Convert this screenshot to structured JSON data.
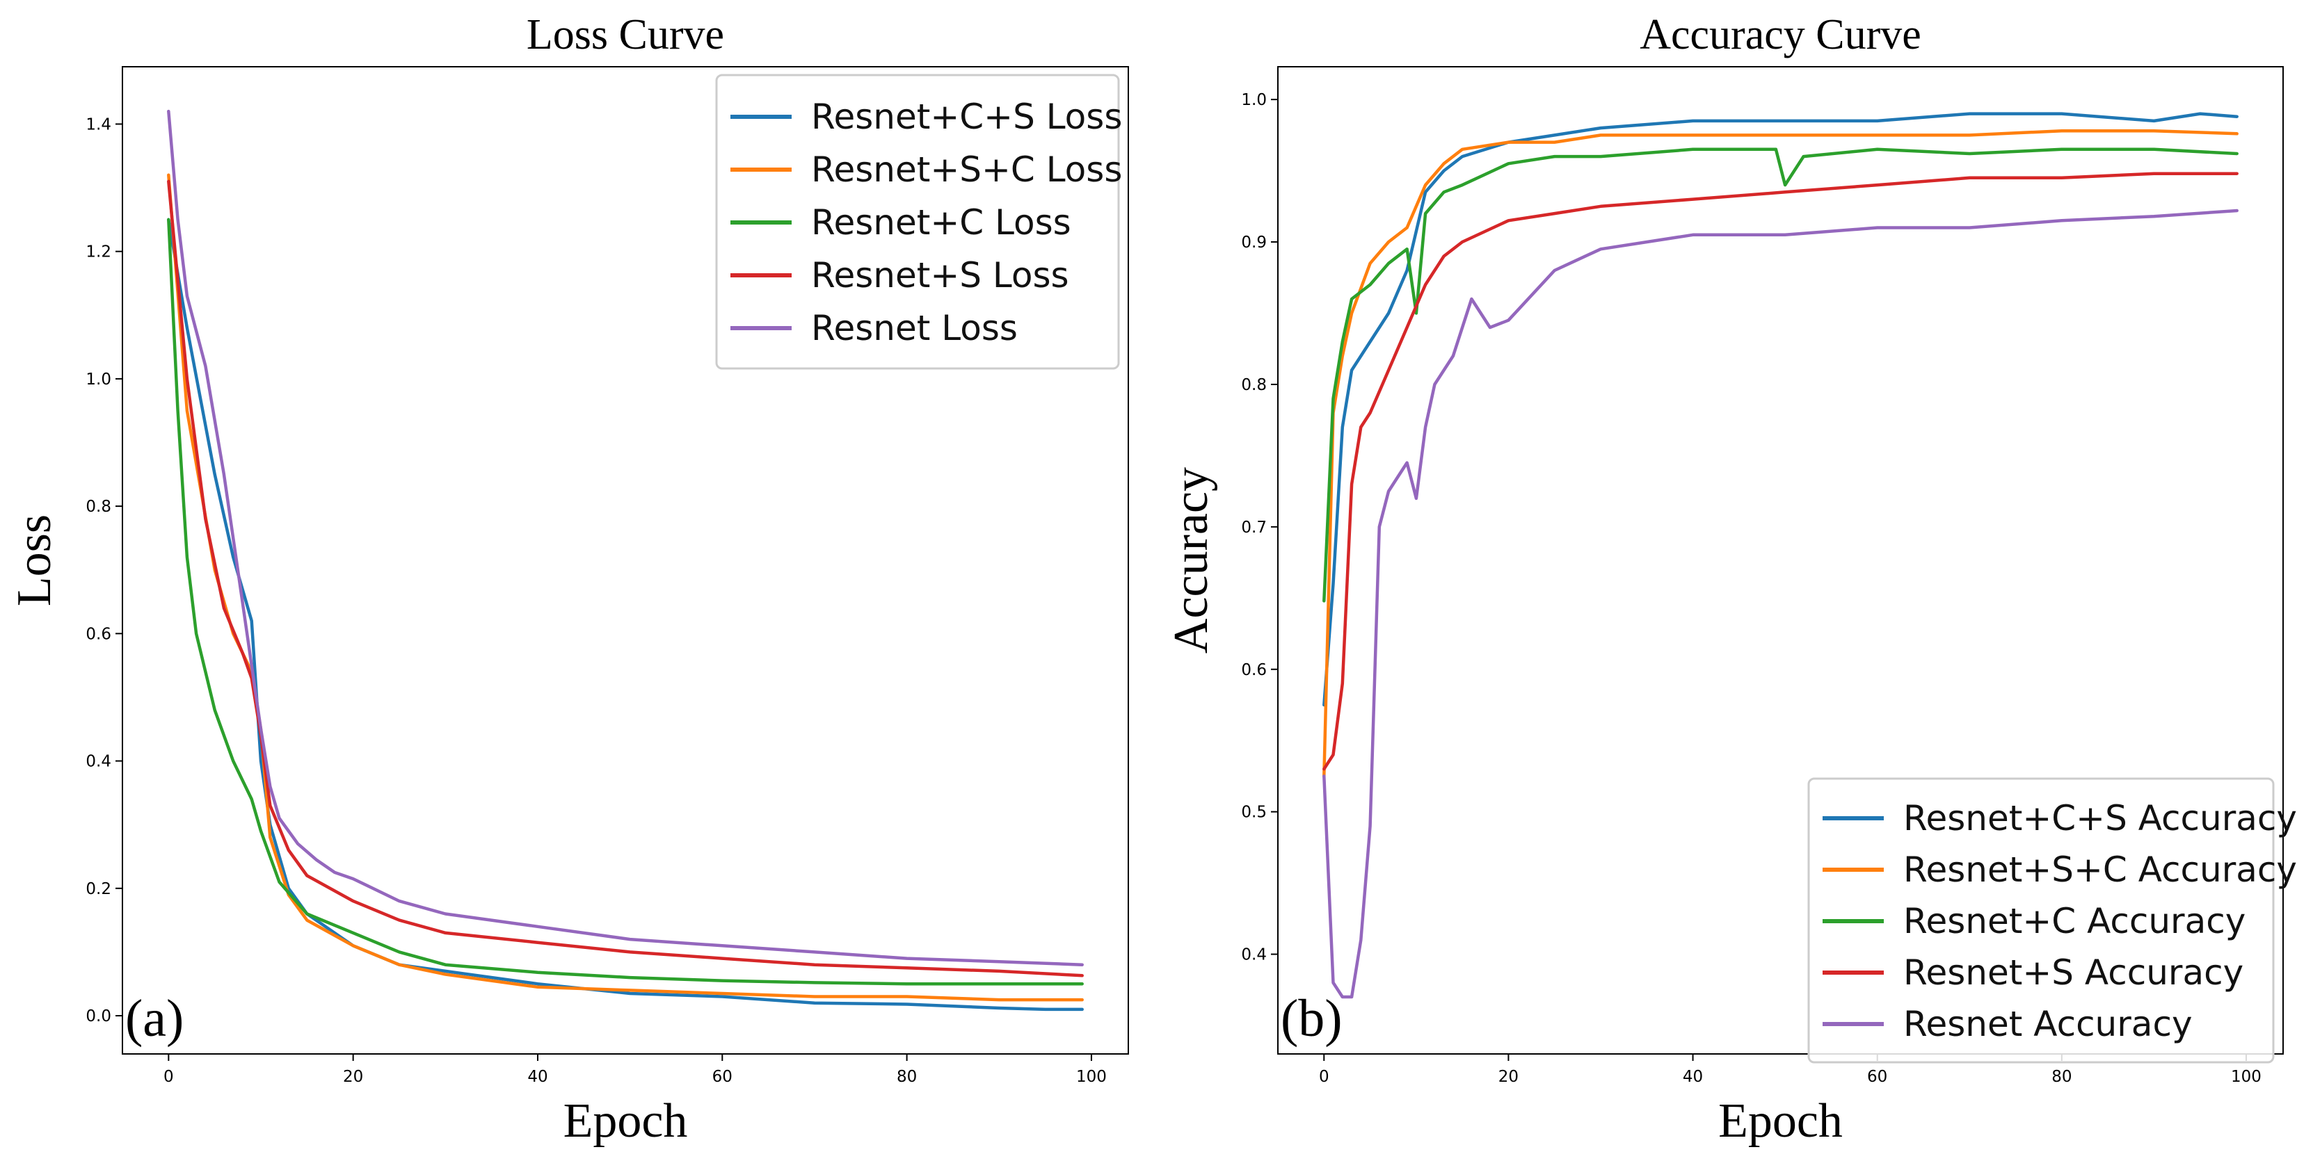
{
  "chart_data": [
    {
      "type": "line",
      "panel": "(a)",
      "title": "Loss Curve",
      "xlabel": "Epoch",
      "ylabel": "Loss",
      "xlim": [
        -5,
        104
      ],
      "ylim": [
        -0.06,
        1.49
      ],
      "xticks": [
        0,
        20,
        40,
        60,
        80,
        100
      ],
      "xtick_labels": [
        "0",
        "20",
        "40",
        "60",
        "80",
        "100"
      ],
      "yticks": [
        0.0,
        0.2,
        0.4,
        0.6,
        0.8,
        1.0,
        1.2,
        1.4
      ],
      "ytick_labels": [
        "0.0",
        "0.2",
        "0.4",
        "0.6",
        "0.8",
        "1.0",
        "1.2",
        "1.4"
      ],
      "grid": false,
      "legend_position": "top-right",
      "series": [
        {
          "name": "Resnet+C+S Loss",
          "color": "#1f77b4",
          "x": [
            0,
            2,
            5,
            7,
            9,
            10,
            11,
            13,
            15,
            20,
            25,
            30,
            40,
            50,
            60,
            70,
            80,
            90,
            95,
            99
          ],
          "values": [
            1.25,
            1.08,
            0.85,
            0.72,
            0.62,
            0.4,
            0.3,
            0.2,
            0.16,
            0.11,
            0.08,
            0.07,
            0.05,
            0.035,
            0.03,
            0.02,
            0.018,
            0.012,
            0.01,
            0.01
          ]
        },
        {
          "name": "Resnet+S+C Loss",
          "color": "#ff7f0e",
          "x": [
            0,
            2,
            5,
            7,
            9,
            10,
            11,
            13,
            15,
            20,
            25,
            30,
            40,
            50,
            60,
            70,
            80,
            90,
            95,
            99
          ],
          "values": [
            1.32,
            0.95,
            0.7,
            0.6,
            0.54,
            0.45,
            0.28,
            0.19,
            0.15,
            0.11,
            0.08,
            0.065,
            0.045,
            0.04,
            0.035,
            0.03,
            0.03,
            0.025,
            0.025,
            0.025
          ]
        },
        {
          "name": "Resnet+C Loss",
          "color": "#2ca02c",
          "x": [
            0,
            1,
            2,
            3,
            5,
            7,
            9,
            10,
            12,
            15,
            20,
            25,
            30,
            40,
            50,
            60,
            70,
            80,
            90,
            99
          ],
          "values": [
            1.25,
            0.95,
            0.72,
            0.6,
            0.48,
            0.4,
            0.34,
            0.29,
            0.21,
            0.16,
            0.13,
            0.1,
            0.08,
            0.068,
            0.06,
            0.055,
            0.052,
            0.05,
            0.05,
            0.05
          ]
        },
        {
          "name": "Resnet+S Loss",
          "color": "#d62728",
          "x": [
            0,
            2,
            4,
            6,
            8,
            9,
            10,
            11,
            13,
            15,
            20,
            25,
            30,
            40,
            50,
            60,
            70,
            80,
            90,
            99
          ],
          "values": [
            1.31,
            1.0,
            0.78,
            0.64,
            0.57,
            0.53,
            0.44,
            0.33,
            0.26,
            0.22,
            0.18,
            0.15,
            0.13,
            0.115,
            0.1,
            0.09,
            0.08,
            0.075,
            0.07,
            0.063
          ]
        },
        {
          "name": "Resnet Loss",
          "color": "#9467bd",
          "x": [
            0,
            1,
            2,
            4,
            6,
            8,
            9,
            10,
            11,
            12,
            14,
            16,
            18,
            20,
            25,
            30,
            40,
            50,
            60,
            70,
            80,
            90,
            99
          ],
          "values": [
            1.42,
            1.25,
            1.13,
            1.02,
            0.85,
            0.65,
            0.55,
            0.45,
            0.36,
            0.31,
            0.27,
            0.245,
            0.225,
            0.215,
            0.18,
            0.16,
            0.14,
            0.12,
            0.11,
            0.1,
            0.09,
            0.085,
            0.08
          ]
        }
      ]
    },
    {
      "type": "line",
      "panel": "(b)",
      "title": "Accuracy Curve",
      "xlabel": "Epoch",
      "ylabel": "Accuracy",
      "xlim": [
        -5,
        104
      ],
      "ylim": [
        0.33,
        1.023
      ],
      "xticks": [
        0,
        20,
        40,
        60,
        80,
        100
      ],
      "xtick_labels": [
        "0",
        "20",
        "40",
        "60",
        "80",
        "100"
      ],
      "yticks": [
        0.4,
        0.5,
        0.6,
        0.7,
        0.8,
        0.9,
        1.0
      ],
      "ytick_labels": [
        "0.4",
        "0.5",
        "0.6",
        "0.7",
        "0.8",
        "0.9",
        "1.0"
      ],
      "grid": false,
      "legend_position": "bottom-right",
      "series": [
        {
          "name": "Resnet+C+S Accuracy",
          "color": "#1f77b4",
          "x": [
            0,
            1,
            2,
            3,
            5,
            7,
            9,
            11,
            13,
            15,
            20,
            25,
            30,
            40,
            50,
            60,
            70,
            80,
            90,
            95,
            99
          ],
          "values": [
            0.575,
            0.66,
            0.77,
            0.81,
            0.83,
            0.85,
            0.88,
            0.935,
            0.95,
            0.96,
            0.97,
            0.975,
            0.98,
            0.985,
            0.985,
            0.985,
            0.99,
            0.99,
            0.985,
            0.99,
            0.988
          ]
        },
        {
          "name": "Resnet+S+C Accuracy",
          "color": "#ff7f0e",
          "x": [
            0,
            1,
            2,
            3,
            5,
            7,
            9,
            11,
            13,
            15,
            20,
            25,
            30,
            40,
            50,
            60,
            70,
            80,
            90,
            99
          ],
          "values": [
            0.525,
            0.78,
            0.82,
            0.85,
            0.885,
            0.9,
            0.91,
            0.94,
            0.955,
            0.965,
            0.97,
            0.97,
            0.975,
            0.975,
            0.975,
            0.975,
            0.975,
            0.978,
            0.978,
            0.976
          ]
        },
        {
          "name": "Resnet+C Accuracy",
          "color": "#2ca02c",
          "x": [
            0,
            1,
            2,
            3,
            5,
            7,
            9,
            10,
            11,
            13,
            15,
            20,
            25,
            30,
            40,
            49,
            50,
            52,
            60,
            70,
            80,
            90,
            99
          ],
          "values": [
            0.648,
            0.79,
            0.83,
            0.86,
            0.87,
            0.885,
            0.895,
            0.85,
            0.92,
            0.935,
            0.94,
            0.955,
            0.96,
            0.96,
            0.965,
            0.965,
            0.94,
            0.96,
            0.965,
            0.962,
            0.965,
            0.965,
            0.962
          ]
        },
        {
          "name": "Resnet+S Accuracy",
          "color": "#d62728",
          "x": [
            0,
            1,
            2,
            3,
            4,
            5,
            7,
            9,
            11,
            13,
            15,
            20,
            25,
            30,
            40,
            50,
            60,
            70,
            80,
            90,
            99
          ],
          "values": [
            0.53,
            0.54,
            0.59,
            0.73,
            0.77,
            0.78,
            0.81,
            0.84,
            0.87,
            0.89,
            0.9,
            0.915,
            0.92,
            0.925,
            0.93,
            0.935,
            0.94,
            0.945,
            0.945,
            0.948,
            0.948
          ]
        },
        {
          "name": "Resnet Accuracy",
          "color": "#9467bd",
          "x": [
            0,
            1,
            2,
            3,
            4,
            5,
            6,
            7,
            8,
            9,
            10,
            11,
            12,
            14,
            16,
            18,
            20,
            25,
            30,
            40,
            50,
            60,
            70,
            80,
            90,
            99
          ],
          "values": [
            0.525,
            0.38,
            0.37,
            0.37,
            0.41,
            0.49,
            0.7,
            0.725,
            0.735,
            0.745,
            0.72,
            0.77,
            0.8,
            0.82,
            0.86,
            0.84,
            0.845,
            0.88,
            0.895,
            0.905,
            0.905,
            0.91,
            0.91,
            0.915,
            0.918,
            0.922
          ]
        }
      ]
    }
  ]
}
